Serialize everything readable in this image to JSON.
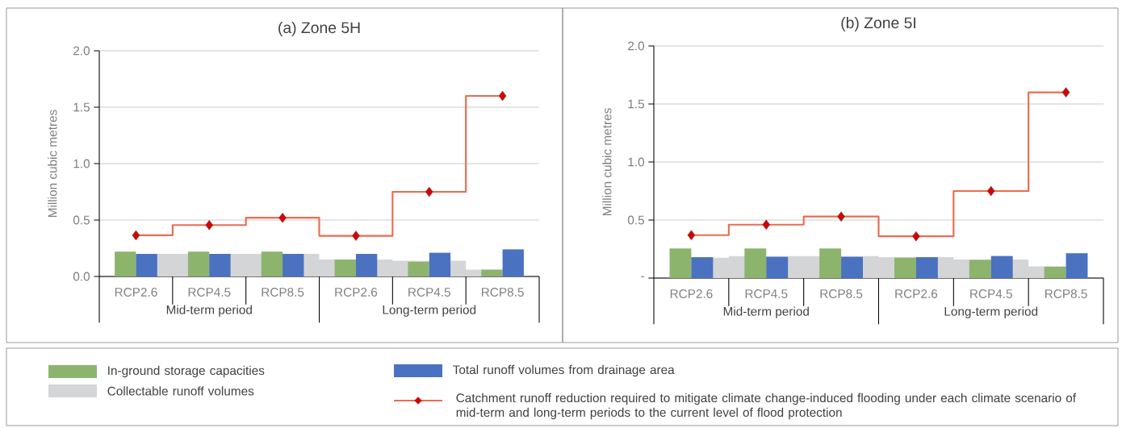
{
  "chart_data": [
    {
      "type": "bar",
      "title": "(a) Zone 5H",
      "ylabel": "Million cubic metres",
      "categories": [
        "RCP2.6",
        "RCP4.5",
        "RCP8.5",
        "RCP2.6",
        "RCP4.5",
        "RCP8.5"
      ],
      "annotations": [
        "Mid-term period",
        "Long-term period"
      ],
      "series": [
        {
          "name": "Collectable runoff volumes",
          "type": "area",
          "color": "#d4d5d7",
          "values": [
            0.2,
            0.2,
            0.2,
            0.15,
            0.14,
            0.06
          ]
        },
        {
          "name": "In-ground storage capacities",
          "type": "bar",
          "color": "#8db46d",
          "values": [
            0.22,
            0.22,
            0.22,
            0.15,
            0.13,
            0.06
          ]
        },
        {
          "name": "Total runoff volumes from drainage area",
          "type": "bar",
          "color": "#4a72c0",
          "values": [
            0.2,
            0.2,
            0.2,
            0.2,
            0.21,
            0.24
          ]
        },
        {
          "name": "Catchment runoff reduction required to mitigate climate change-induced flooding under each climate scenario of mid-term and long-term periods to the current level of flood protection",
          "type": "step",
          "marker": "diamond",
          "color": "#ea6c4f",
          "values": [
            0.365,
            0.455,
            0.52,
            0.36,
            0.75,
            1.6
          ]
        }
      ],
      "ylim": [
        0,
        2
      ],
      "yticks": [
        {
          "value": 0,
          "label": "0.0"
        },
        {
          "value": 0.5,
          "label": "0.5"
        },
        {
          "value": 1,
          "label": "1.0"
        },
        {
          "value": 1.5,
          "label": "1.5"
        },
        {
          "value": 2,
          "label": "2.0"
        }
      ],
      "grid": "y",
      "legend": "bottom"
    },
    {
      "type": "bar",
      "title": "(b) Zone 5I",
      "ylabel": "Million cubic metres",
      "categories": [
        "RCP2.6",
        "RCP4.5",
        "RCP8.5",
        "RCP2.6",
        "RCP4.5",
        "RCP8.5"
      ],
      "annotations": [
        "Mid-term period",
        "Long-term period"
      ],
      "series": [
        {
          "type": "area",
          "color": "#d4d5d7",
          "values": [
            0.175,
            0.19,
            0.19,
            0.18,
            0.16,
            0.1
          ]
        },
        {
          "type": "bar",
          "color": "#8db46d",
          "values": [
            0.255,
            0.255,
            0.255,
            0.175,
            0.157,
            0.098
          ]
        },
        {
          "type": "bar",
          "color": "#4a72c0",
          "values": [
            0.18,
            0.183,
            0.183,
            0.18,
            0.19,
            0.214
          ]
        },
        {
          "type": "step",
          "marker": "diamond",
          "color": "#ea6c4f",
          "values": [
            0.37,
            0.46,
            0.53,
            0.36,
            0.75,
            1.6
          ]
        }
      ],
      "ylim": [
        0,
        2
      ],
      "yticks": [
        {
          "value": 0,
          "label": "-"
        },
        {
          "value": 0.5,
          "label": "0.5"
        },
        {
          "value": 1,
          "label": "1.0"
        },
        {
          "value": 1.5,
          "label": "1.5"
        },
        {
          "value": 2,
          "label": "2.0"
        }
      ],
      "grid": "y"
    }
  ]
}
